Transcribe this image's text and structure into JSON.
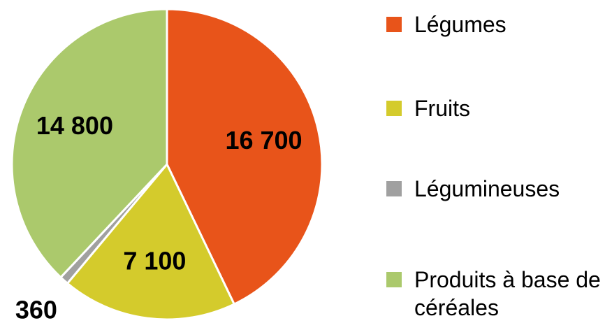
{
  "chart_data": {
    "type": "pie",
    "categories": [
      "Légumes",
      "Fruits",
      "Légumineuses",
      "Produits à base de céréales"
    ],
    "values": [
      16700,
      7100,
      360,
      14800
    ],
    "value_labels": [
      "16 700",
      "7 100",
      "360",
      "14 800"
    ],
    "colors": [
      "#e8541a",
      "#d4cb2c",
      "#a0a0a0",
      "#abc96c"
    ],
    "legend": "right"
  }
}
